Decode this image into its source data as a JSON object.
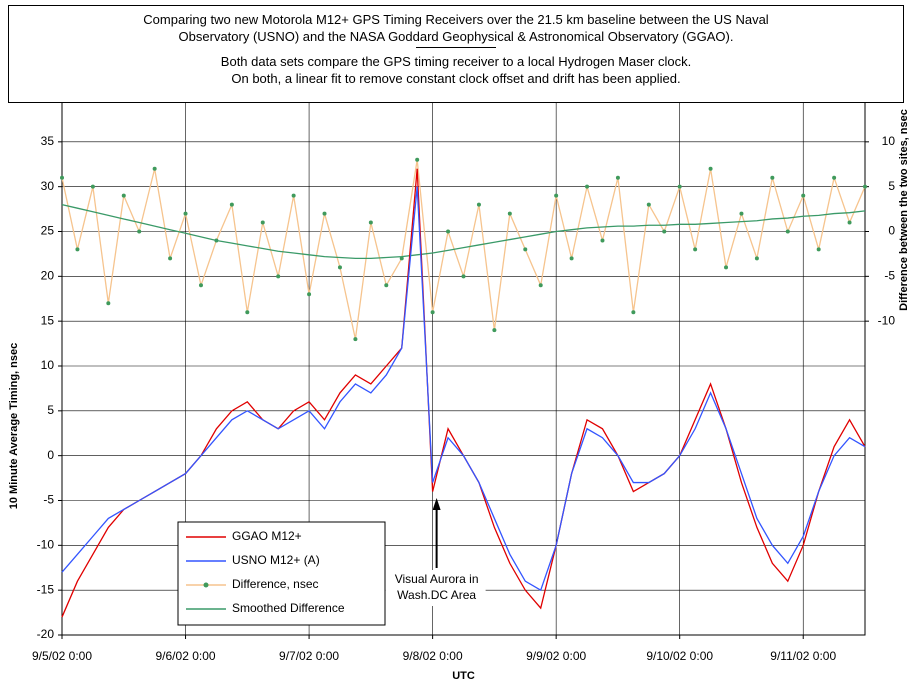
{
  "chart_data": {
    "type": "line",
    "title": [
      "Comparing two new Motorola M12+ GPS Timing Receivers over the 21.5 km baseline between the US Naval",
      "Observatory (USNO) and the NASA Goddard Geophysical & Astronomical Observatory (GGAO)."
    ],
    "subtitle": [
      "Both data sets compare the GPS timing receiver to a local Hydrogen Maser clock.",
      "On both, a linear fit to remove constant clock offset and drift has been applied."
    ],
    "x_label": "UTC",
    "y_label": "10 Minute Average Timing, nsec",
    "y2_label": "Difference between the two sites, nsec",
    "annotations": [
      {
        "text": [
          "Visual Aurora in",
          "Wash.DC Area"
        ],
        "x": "9/8/02 0:00"
      }
    ],
    "x": [
      "9/5/02 0:00",
      "9/5/02 3:00",
      "9/5/02 6:00",
      "9/5/02 9:00",
      "9/5/02 12:00",
      "9/5/02 15:00",
      "9/5/02 18:00",
      "9/5/02 21:00",
      "9/6/02 0:00",
      "9/6/02 3:00",
      "9/6/02 6:00",
      "9/6/02 9:00",
      "9/6/02 12:00",
      "9/6/02 15:00",
      "9/6/02 18:00",
      "9/6/02 21:00",
      "9/7/02 0:00",
      "9/7/02 3:00",
      "9/7/02 6:00",
      "9/7/02 9:00",
      "9/7/02 12:00",
      "9/7/02 15:00",
      "9/7/02 18:00",
      "9/7/02 21:00",
      "9/8/02 0:00",
      "9/8/02 3:00",
      "9/8/02 6:00",
      "9/8/02 9:00",
      "9/8/02 12:00",
      "9/8/02 15:00",
      "9/8/02 18:00",
      "9/8/02 21:00",
      "9/9/02 0:00",
      "9/9/02 3:00",
      "9/9/02 6:00",
      "9/9/02 9:00",
      "9/9/02 12:00",
      "9/9/02 15:00",
      "9/9/02 18:00",
      "9/9/02 21:00",
      "9/10/02 0:00",
      "9/10/02 3:00",
      "9/10/02 6:00",
      "9/10/02 9:00",
      "9/10/02 12:00",
      "9/10/02 15:00",
      "9/10/02 18:00",
      "9/10/02 21:00",
      "9/11/02 0:00",
      "9/11/02 3:00",
      "9/11/02 6:00",
      "9/11/02 9:00",
      "9/11/02 12:00"
    ],
    "series": [
      {
        "name": "Difference, nsec",
        "color": "#f6c48e",
        "marker_color": "#3f9a5c",
        "axis": "y2",
        "values": [
          6,
          -2,
          5,
          -8,
          4,
          0,
          7,
          -3,
          2,
          -6,
          -1,
          3,
          -9,
          1,
          -5,
          4,
          -7,
          2,
          -4,
          -12,
          1,
          -6,
          -3,
          8,
          -9,
          0,
          -5,
          3,
          -11,
          2,
          -2,
          -6,
          4,
          -3,
          5,
          -1,
          6,
          -9,
          3,
          0,
          5,
          -2,
          7,
          -4,
          2,
          -3,
          6,
          0,
          4,
          -2,
          6,
          1,
          5
        ]
      },
      {
        "name": "Smoothed Difference",
        "color": "#3a9a68",
        "axis": "y2",
        "values": [
          3,
          2.6,
          2.2,
          1.8,
          1.4,
          1,
          0.6,
          0.2,
          -0.2,
          -0.6,
          -1,
          -1.3,
          -1.6,
          -1.9,
          -2.2,
          -2.4,
          -2.6,
          -2.8,
          -2.9,
          -3,
          -3,
          -2.9,
          -2.8,
          -2.6,
          -2.4,
          -2.1,
          -1.8,
          -1.5,
          -1.2,
          -0.9,
          -0.6,
          -0.3,
          0,
          0.2,
          0.4,
          0.5,
          0.6,
          0.6,
          0.7,
          0.7,
          0.8,
          0.8,
          0.9,
          1,
          1.1,
          1.2,
          1.4,
          1.5,
          1.7,
          1.8,
          2,
          2.1,
          2.3
        ]
      },
      {
        "name": "GGAO M12+",
        "color": "#e00000",
        "values": [
          -18,
          -14,
          -11,
          -8,
          -6,
          -5,
          -4,
          -3,
          -2,
          0,
          3,
          5,
          6,
          4,
          3,
          5,
          6,
          4,
          7,
          9,
          8,
          10,
          12,
          32,
          -4,
          3,
          0,
          -3,
          -8,
          -12,
          -15,
          -17,
          -10,
          -2,
          4,
          3,
          0,
          -4,
          -3,
          -2,
          0,
          4,
          8,
          3,
          -3,
          -8,
          -12,
          -14,
          -10,
          -4,
          1,
          4,
          1
        ]
      },
      {
        "name": "USNO M12+ (A)",
        "color": "#3355ff",
        "values": [
          -13,
          -11,
          -9,
          -7,
          -6,
          -5,
          -4,
          -3,
          -2,
          0,
          2,
          4,
          5,
          4,
          3,
          4,
          5,
          3,
          6,
          8,
          7,
          9,
          12,
          30,
          -3,
          2,
          0,
          -3,
          -7,
          -11,
          -14,
          -15,
          -10,
          -2,
          3,
          2,
          0,
          -3,
          -3,
          -2,
          0,
          3,
          7,
          3,
          -2,
          -7,
          -10,
          -12,
          -9,
          -4,
          0,
          2,
          1
        ]
      }
    ],
    "xlim": [
      "9/5/02 0:00",
      "9/11/02 12:00"
    ],
    "xticks": [
      "9/5/02 0:00",
      "9/6/02 0:00",
      "9/7/02 0:00",
      "9/8/02 0:00",
      "9/9/02 0:00",
      "9/10/02 0:00",
      "9/11/02 0:00"
    ],
    "ylim": [
      -20,
      40
    ],
    "yticks": [
      -20,
      -15,
      -10,
      -5,
      0,
      5,
      10,
      15,
      20,
      25,
      30,
      35
    ],
    "y2lim": [
      -45,
      15
    ],
    "y2ticks": [
      -10,
      -5,
      0,
      5,
      10
    ],
    "grid": true
  }
}
